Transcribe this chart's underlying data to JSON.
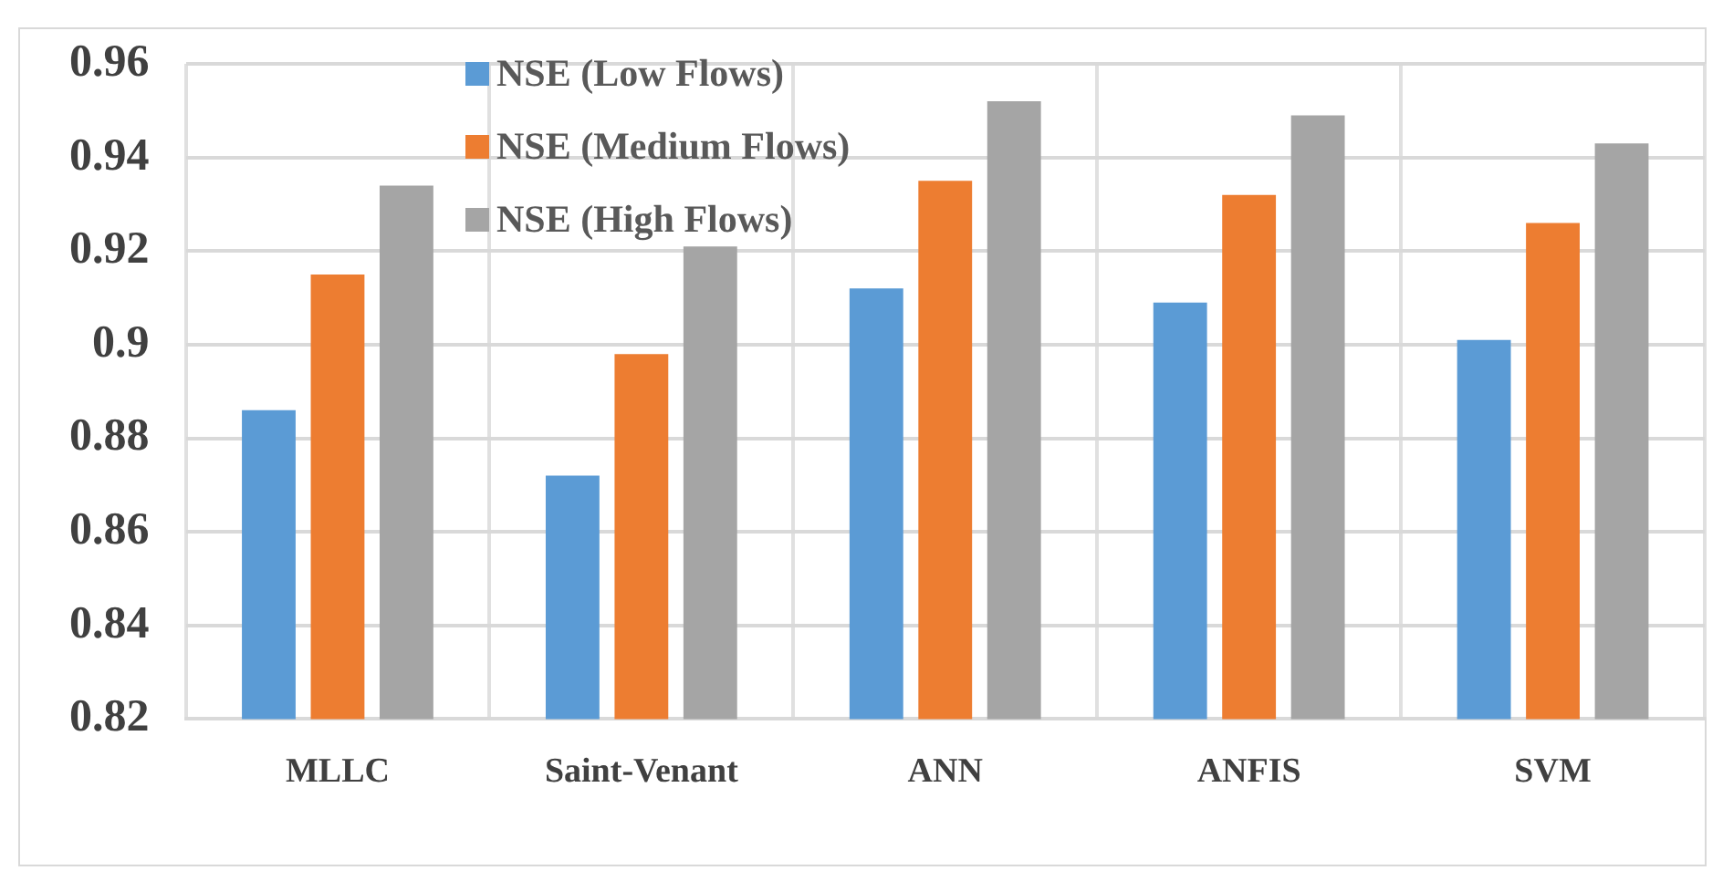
{
  "chart_data": {
    "type": "bar",
    "categories": [
      "MLLC",
      "Saint-Venant",
      "ANN",
      "ANFIS",
      "SVM"
    ],
    "series": [
      {
        "name": "NSE (Low Flows)",
        "color": "#5b9bd5",
        "values": [
          0.886,
          0.872,
          0.912,
          0.909,
          0.901
        ]
      },
      {
        "name": "NSE (Medium Flows)",
        "color": "#ed7d31",
        "values": [
          0.915,
          0.898,
          0.935,
          0.932,
          0.926
        ]
      },
      {
        "name": "NSE (High Flows)",
        "color": "#a5a5a5",
        "values": [
          0.934,
          0.921,
          0.952,
          0.949,
          0.943
        ]
      }
    ],
    "ylim": [
      0.82,
      0.96
    ],
    "yticks": [
      0.82,
      0.84,
      0.86,
      0.88,
      0.9,
      0.92,
      0.94,
      0.96
    ],
    "grid": true,
    "legend": "top left"
  }
}
